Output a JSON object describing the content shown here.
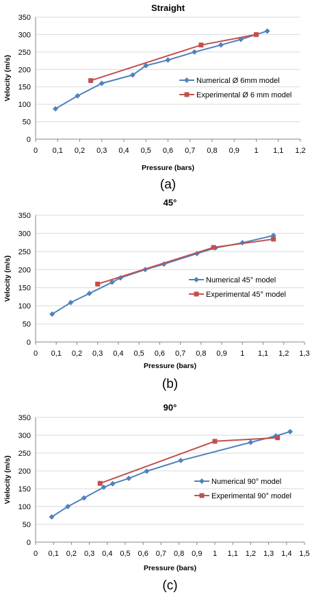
{
  "colors": {
    "numerical": "#4f81bd",
    "experimental": "#c0504d"
  },
  "chart_data": [
    {
      "type": "line",
      "title": "Straight",
      "xlabel": "Pressure (bars)",
      "ylabel": "Velocity (m/s)",
      "xlim": [
        0,
        1.2
      ],
      "ylim": [
        0,
        350
      ],
      "x_ticks": [
        "0",
        "0,1",
        "0,2",
        "0,3",
        "0,4",
        "0,5",
        "0,6",
        "0,7",
        "0,8",
        "0,9",
        "1",
        "1,1",
        "1,2"
      ],
      "y_ticks": [
        "0",
        "50",
        "100",
        "150",
        "200",
        "250",
        "300",
        "350"
      ],
      "legend_position": "right",
      "caption": "(a)",
      "series": [
        {
          "name": "Numerical Ø 6mm model",
          "marker": "diamond",
          "color": "#4f81bd",
          "points": [
            [
              0.09,
              87
            ],
            [
              0.19,
              124
            ],
            [
              0.3,
              160
            ],
            [
              0.44,
              184
            ],
            [
              0.5,
              211
            ],
            [
              0.6,
              227
            ],
            [
              0.72,
              250
            ],
            [
              0.84,
              270
            ],
            [
              0.93,
              286
            ],
            [
              1.05,
              310
            ]
          ]
        },
        {
          "name": "Experimental Ø 6 mm model",
          "marker": "square",
          "color": "#c0504d",
          "points": [
            [
              0.25,
              168
            ],
            [
              0.75,
              270
            ],
            [
              1.0,
              300
            ]
          ]
        }
      ]
    },
    {
      "type": "line",
      "title": "45°",
      "xlabel": "Pressure (bars)",
      "ylabel": "Velocity (m/s)",
      "xlim": [
        0,
        1.3
      ],
      "ylim": [
        0,
        350
      ],
      "x_ticks": [
        "0",
        "0,1",
        "0,2",
        "0,3",
        "0,4",
        "0,5",
        "0,6",
        "0,7",
        "0,8",
        "0,9",
        "1",
        "1,1",
        "1,2",
        "1,3"
      ],
      "y_ticks": [
        "0",
        "50",
        "100",
        "150",
        "200",
        "250",
        "300",
        "350"
      ],
      "legend_position": "right",
      "caption": "(b)",
      "series": [
        {
          "name": "Numerical 45° model",
          "marker": "diamond",
          "color": "#4f81bd",
          "points": [
            [
              0.08,
              77
            ],
            [
              0.17,
              109
            ],
            [
              0.26,
              134
            ],
            [
              0.37,
              165
            ],
            [
              0.41,
              177
            ],
            [
              0.53,
              200
            ],
            [
              0.62,
              215
            ],
            [
              0.78,
              244
            ],
            [
              0.87,
              260
            ],
            [
              1.0,
              274
            ],
            [
              1.15,
              294
            ]
          ]
        },
        {
          "name": "Experimental 45° model",
          "marker": "square",
          "color": "#c0504d",
          "points": [
            [
              0.3,
              160
            ],
            [
              0.86,
              261
            ],
            [
              1.15,
              284
            ]
          ]
        }
      ]
    },
    {
      "type": "line",
      "title": "90°",
      "xlabel": "Pressure (bars)",
      "ylabel": "Vielocity (m/s)",
      "xlim": [
        0,
        1.5
      ],
      "ylim": [
        0,
        350
      ],
      "x_ticks": [
        "0",
        "0,1",
        "0,2",
        "0,3",
        "0,4",
        "0,5",
        "0,6",
        "0,7",
        "0,8",
        "0,9",
        "1",
        "1,1",
        "1,2",
        "1,3",
        "1,4",
        "1,5"
      ],
      "y_ticks": [
        "0",
        "50",
        "100",
        "150",
        "200",
        "250",
        "300",
        "350"
      ],
      "legend_position": "right",
      "caption": "(c)",
      "series": [
        {
          "name": "Numerical 90° model",
          "marker": "diamond",
          "color": "#4f81bd",
          "points": [
            [
              0.09,
              71
            ],
            [
              0.18,
              100
            ],
            [
              0.27,
              124
            ],
            [
              0.38,
              154
            ],
            [
              0.43,
              164
            ],
            [
              0.52,
              179
            ],
            [
              0.62,
              199
            ],
            [
              0.81,
              229
            ],
            [
              1.2,
              280
            ],
            [
              1.34,
              298
            ],
            [
              1.42,
              310
            ]
          ]
        },
        {
          "name": "Experimental 90° model",
          "marker": "square",
          "color": "#c0504d",
          "points": [
            [
              0.36,
              165
            ],
            [
              1.0,
              283
            ],
            [
              1.35,
              293
            ]
          ]
        }
      ]
    }
  ]
}
